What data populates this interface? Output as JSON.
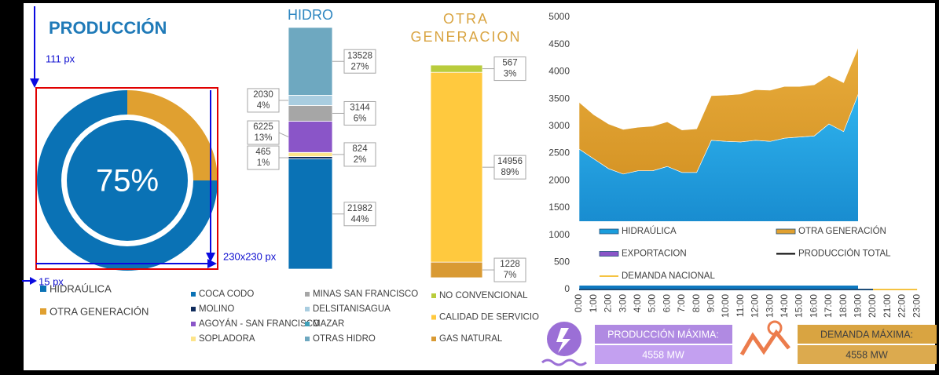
{
  "title": "PRODUCCIÓN",
  "annotations": [
    "111 px",
    "230x230 px",
    "15 px"
  ],
  "kpis": [
    {
      "label": "PRODUCCIÓN MÁXIMA:",
      "value": "4558 MW"
    },
    {
      "label": "DEMANDA MÁXIMA:",
      "value": "4558 MW"
    }
  ],
  "chart_data": [
    {
      "type": "donut",
      "center_label": "75%",
      "categories": [
        "HIDRAÚLICA",
        "OTRA GENERACIÓN"
      ],
      "values": [
        75,
        25
      ],
      "colors": [
        "#0a72b5",
        "#e0a030"
      ]
    },
    {
      "type": "stacked_column",
      "title": "HIDRO",
      "series": [
        {
          "name": "COCA CODO",
          "color": "#0a72b5",
          "values": [
            21982
          ],
          "share_labels": [
            "44%"
          ]
        },
        {
          "name": "MOLINO",
          "color": "#102c5c",
          "values": [
            465
          ],
          "share_labels": [
            "1%"
          ]
        },
        {
          "name": "SOPLADORA",
          "color": "#fde48a",
          "values": [
            824
          ],
          "share_labels": [
            "2%"
          ]
        },
        {
          "name": "AGOYÁN - SAN FRANCISCO",
          "color": "#8a55c8",
          "values": [
            6225
          ],
          "share_labels": [
            "13%"
          ]
        },
        {
          "name": "MINAS SAN FRANCISCO",
          "color": "#a6a6a6",
          "values": [
            3144
          ],
          "share_labels": [
            "6%"
          ]
        },
        {
          "name": "DELSITANISAGUA",
          "color": "#a9cde0",
          "values": [
            2030
          ],
          "share_labels": [
            "4%"
          ]
        },
        {
          "name": "MAZAR",
          "color": "#3f9fb8",
          "values": [
            null
          ],
          "share_labels": [
            null
          ]
        },
        {
          "name": "OTRAS HIDRO",
          "color": "#6ea8c0",
          "values": [
            13528
          ],
          "share_labels": [
            "27%"
          ]
        }
      ]
    },
    {
      "type": "stacked_column",
      "title_lines": [
        "OTRA",
        "GENERACION"
      ],
      "series": [
        {
          "name": "GAS NATURAL",
          "color": "#d99a33",
          "values": [
            1228
          ],
          "share_labels": [
            "7%"
          ]
        },
        {
          "name": "CALIDAD DE SERVICIO",
          "color": "#ffc93e",
          "values": [
            14956
          ],
          "share_labels": [
            "89%"
          ]
        },
        {
          "name": "NO CONVENCIONAL",
          "color": "#b9cc3c",
          "values": [
            567
          ],
          "share_labels": [
            "3%"
          ]
        }
      ]
    },
    {
      "type": "stacked_area",
      "x": [
        "0:00",
        "1:00",
        "2:00",
        "3:00",
        "4:00",
        "5:00",
        "6:00",
        "7:00",
        "8:00",
        "9:00",
        "10:00",
        "11:00",
        "12:00",
        "13:00",
        "14:00",
        "15:00",
        "16:00",
        "17:00",
        "18:00",
        "19:00",
        "20:00",
        "21:00",
        "22:00",
        "23:00"
      ],
      "ylim": [
        0,
        5000
      ],
      "yticks": [
        0,
        500,
        1000,
        1500,
        2000,
        2500,
        3000,
        3500,
        4000,
        4500,
        5000
      ],
      "series": [
        {
          "name": "HIDRAÚLICA",
          "kind": "area",
          "color": "#1a9ddc",
          "values": [
            2580,
            2400,
            2220,
            2120,
            2180,
            2180,
            2260,
            2150,
            2150,
            2740,
            2720,
            2710,
            2740,
            2720,
            2780,
            2800,
            2820,
            3040,
            2900,
            3590,
            null,
            null,
            null,
            null
          ]
        },
        {
          "name": "OTRA GENERACIÓN",
          "kind": "area",
          "color": "#e0a030",
          "values": [
            860,
            810,
            820,
            820,
            800,
            820,
            820,
            780,
            800,
            820,
            850,
            880,
            930,
            940,
            950,
            930,
            940,
            890,
            900,
            860,
            null,
            null,
            null,
            null
          ]
        },
        {
          "name": "EXPORTACION",
          "kind": "area",
          "color": "#8a55c8",
          "values": [
            null,
            null,
            null,
            null,
            null,
            null,
            null,
            null,
            null,
            null,
            null,
            null,
            null,
            null,
            null,
            null,
            null,
            null,
            null,
            null,
            null,
            null,
            null,
            null
          ]
        },
        {
          "name": "PRODUCCIÓN TOTAL",
          "kind": "line",
          "color": "#000000",
          "values": [
            null,
            null,
            null,
            null,
            null,
            null,
            null,
            null,
            null,
            null,
            null,
            null,
            null,
            null,
            null,
            null,
            null,
            null,
            null,
            null,
            null,
            null,
            null,
            null
          ]
        },
        {
          "name": "DEMANDA NACIONAL",
          "kind": "line",
          "color": "#f5c342",
          "values": [
            null,
            null,
            null,
            null,
            null,
            null,
            null,
            null,
            null,
            null,
            null,
            null,
            null,
            null,
            null,
            null,
            null,
            null,
            null,
            null,
            0,
            0,
            0,
            0
          ]
        }
      ]
    }
  ]
}
